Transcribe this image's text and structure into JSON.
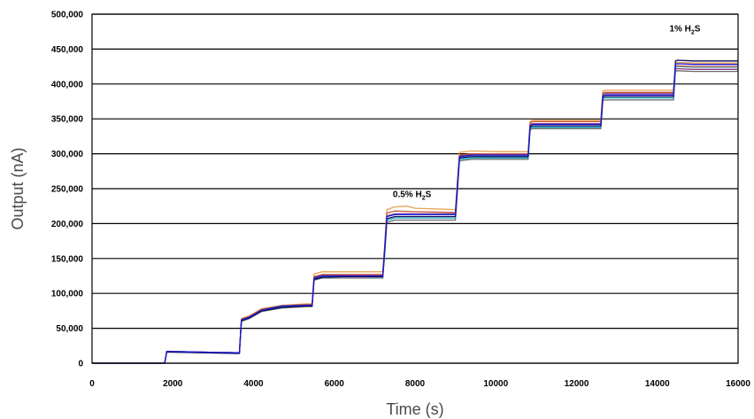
{
  "chart_data": {
    "type": "line",
    "title": "",
    "xlabel": "Time (s)",
    "ylabel": "Output (nA)",
    "xlim": [
      0,
      16000
    ],
    "ylim": [
      0,
      500000
    ],
    "grid": "horizontal",
    "legend": "none",
    "x_ticks": [
      "0",
      "2000",
      "4000",
      "6000",
      "8000",
      "10000",
      "12000",
      "14000",
      "16000"
    ],
    "y_ticks": [
      "0",
      "50,000",
      "100,000",
      "150,000",
      "200,000",
      "250,000",
      "300,000",
      "350,000",
      "400,000",
      "450,000",
      "500,000"
    ],
    "annotations": [
      {
        "main": "0.5% H",
        "sub": "2",
        "tail": "S",
        "x": 7450,
        "y": 238000
      },
      {
        "main": "1% H",
        "sub": "2",
        "tail": "S",
        "x": 14300,
        "y": 475000
      }
    ],
    "series": [
      {
        "color": "#1a1ad6",
        "x": [
          0,
          1800,
          1850,
          3550,
          3650,
          3700,
          3900,
          4200,
          4700,
          5300,
          5450,
          5500,
          5700,
          6200,
          7200,
          7250,
          7300,
          7500,
          8000,
          9000,
          9050,
          9100,
          9400,
          10000,
          10800,
          10850,
          10900,
          11300,
          12600,
          12650,
          12700,
          13100,
          14400,
          14450,
          14500,
          14900,
          16000
        ],
        "y": [
          0,
          0,
          17000,
          15000,
          15000,
          62000,
          66000,
          76000,
          82000,
          83000,
          83000,
          122000,
          125000,
          125000,
          125000,
          165000,
          210000,
          213000,
          213000,
          213000,
          255000,
          296000,
          298000,
          298000,
          298000,
          340000,
          342000,
          342000,
          342000,
          383000,
          384000,
          384000,
          384000,
          428000,
          429000,
          428000,
          428000
        ]
      },
      {
        "color": "#0a0a5a",
        "x": [
          0,
          1800,
          1850,
          3550,
          3650,
          3700,
          3900,
          4200,
          4700,
          5300,
          5450,
          5500,
          5700,
          6200,
          7200,
          7250,
          7300,
          7500,
          8000,
          9000,
          9050,
          9100,
          9400,
          10000,
          10800,
          10850,
          10900,
          11300,
          12600,
          12650,
          12700,
          13100,
          14400,
          14450,
          14500,
          14900,
          16000
        ],
        "y": [
          0,
          0,
          16000,
          14000,
          14000,
          61000,
          65000,
          75000,
          80000,
          82000,
          82000,
          120000,
          123000,
          124000,
          124000,
          163000,
          207000,
          210000,
          210000,
          210000,
          252000,
          294000,
          296000,
          296000,
          296000,
          338000,
          340000,
          340000,
          340000,
          381000,
          382000,
          382000,
          382000,
          433000,
          434000,
          433000,
          433000
        ]
      },
      {
        "color": "#c2553a",
        "x": [
          0,
          1800,
          1850,
          3550,
          3650,
          3700,
          3900,
          4200,
          4700,
          5300,
          5450,
          5500,
          5700,
          6200,
          7200,
          7250,
          7300,
          7500,
          8000,
          9000,
          9050,
          9100,
          9400,
          10000,
          10800,
          10850,
          10900,
          11300,
          12600,
          12650,
          12700,
          13100,
          14400,
          14450,
          14500,
          14900,
          16000
        ],
        "y": [
          0,
          0,
          17000,
          15000,
          15000,
          63000,
          67000,
          77000,
          82000,
          84000,
          84000,
          124000,
          127000,
          127000,
          127000,
          168000,
          215000,
          218000,
          217000,
          216000,
          258000,
          298000,
          300000,
          300000,
          300000,
          344000,
          346000,
          346000,
          346000,
          387000,
          388000,
          388000,
          388000,
          425000,
          426000,
          425000,
          425000
        ]
      },
      {
        "color": "#e8a050",
        "x": [
          0,
          1800,
          1850,
          3550,
          3650,
          3700,
          3900,
          4200,
          4700,
          5300,
          5450,
          5500,
          5700,
          6200,
          7200,
          7250,
          7300,
          7500,
          7800,
          8000,
          9000,
          9050,
          9100,
          9400,
          10000,
          10800,
          10850,
          10900,
          11300,
          12600,
          12650,
          12700,
          13100,
          14400,
          14450,
          14500,
          14900,
          16000
        ],
        "y": [
          0,
          0,
          17000,
          15000,
          15000,
          64000,
          68000,
          78000,
          83000,
          85000,
          85000,
          128000,
          131000,
          131000,
          131000,
          172000,
          220000,
          224000,
          225000,
          222000,
          220000,
          262000,
          302000,
          304000,
          303000,
          303000,
          346000,
          348000,
          348000,
          348000,
          390000,
          391000,
          391000,
          391000,
          430000,
          431000,
          430000,
          430000
        ]
      },
      {
        "color": "#20b0c8",
        "x": [
          0,
          1800,
          1850,
          3550,
          3650,
          3700,
          3900,
          4200,
          4700,
          5300,
          5450,
          5500,
          5700,
          6200,
          7200,
          7250,
          7300,
          7500,
          8000,
          9000,
          9050,
          9100,
          9400,
          10000,
          10800,
          10850,
          10900,
          11300,
          12600,
          12650,
          12700,
          13100,
          14400,
          14450,
          14500,
          14900,
          16000
        ],
        "y": [
          0,
          0,
          17000,
          15000,
          15000,
          63000,
          67000,
          76000,
          81000,
          83000,
          83000,
          121000,
          124000,
          124000,
          124000,
          160000,
          205000,
          208000,
          208000,
          208000,
          250000,
          292000,
          294000,
          294000,
          294000,
          336000,
          338000,
          338000,
          338000,
          379000,
          380000,
          380000,
          380000,
          424000,
          425000,
          424000,
          424000
        ]
      },
      {
        "color": "#6a6a6a",
        "x": [
          0,
          1800,
          1850,
          3550,
          3650,
          3700,
          3900,
          4200,
          4700,
          5300,
          5450,
          5500,
          5700,
          6200,
          7200,
          7250,
          7300,
          7500,
          8000,
          9000,
          9050,
          9100,
          9400,
          10000,
          10800,
          10850,
          10900,
          11300,
          12600,
          12650,
          12700,
          13100,
          14400,
          14450,
          14500,
          14900,
          16000
        ],
        "y": [
          0,
          0,
          16000,
          14000,
          14000,
          60000,
          64000,
          74000,
          79000,
          81000,
          81000,
          119000,
          122000,
          122000,
          122000,
          158000,
          202000,
          205000,
          205000,
          205000,
          247000,
          290000,
          292000,
          292000,
          292000,
          334000,
          336000,
          336000,
          336000,
          376000,
          377000,
          377000,
          377000,
          418000,
          419000,
          418000,
          418000
        ]
      },
      {
        "color": "#8a3a8a",
        "x": [
          0,
          1800,
          1850,
          3550,
          3650,
          3700,
          3900,
          4200,
          4700,
          5300,
          5450,
          5500,
          5700,
          6200,
          7200,
          7250,
          7300,
          7500,
          8000,
          9000,
          9050,
          9100,
          9400,
          10000,
          10800,
          10850,
          10900,
          11300,
          12600,
          12650,
          12700,
          13100,
          14400,
          14450,
          14500,
          14900,
          16000
        ],
        "y": [
          0,
          0,
          17000,
          15000,
          15000,
          62000,
          66000,
          76000,
          81000,
          83000,
          83000,
          123000,
          126000,
          126000,
          126000,
          165000,
          211000,
          214000,
          214000,
          214000,
          256000,
          297000,
          299000,
          299000,
          299000,
          341000,
          343000,
          343000,
          343000,
          385000,
          386000,
          386000,
          386000,
          421000,
          422000,
          421000,
          421000
        ]
      }
    ]
  }
}
